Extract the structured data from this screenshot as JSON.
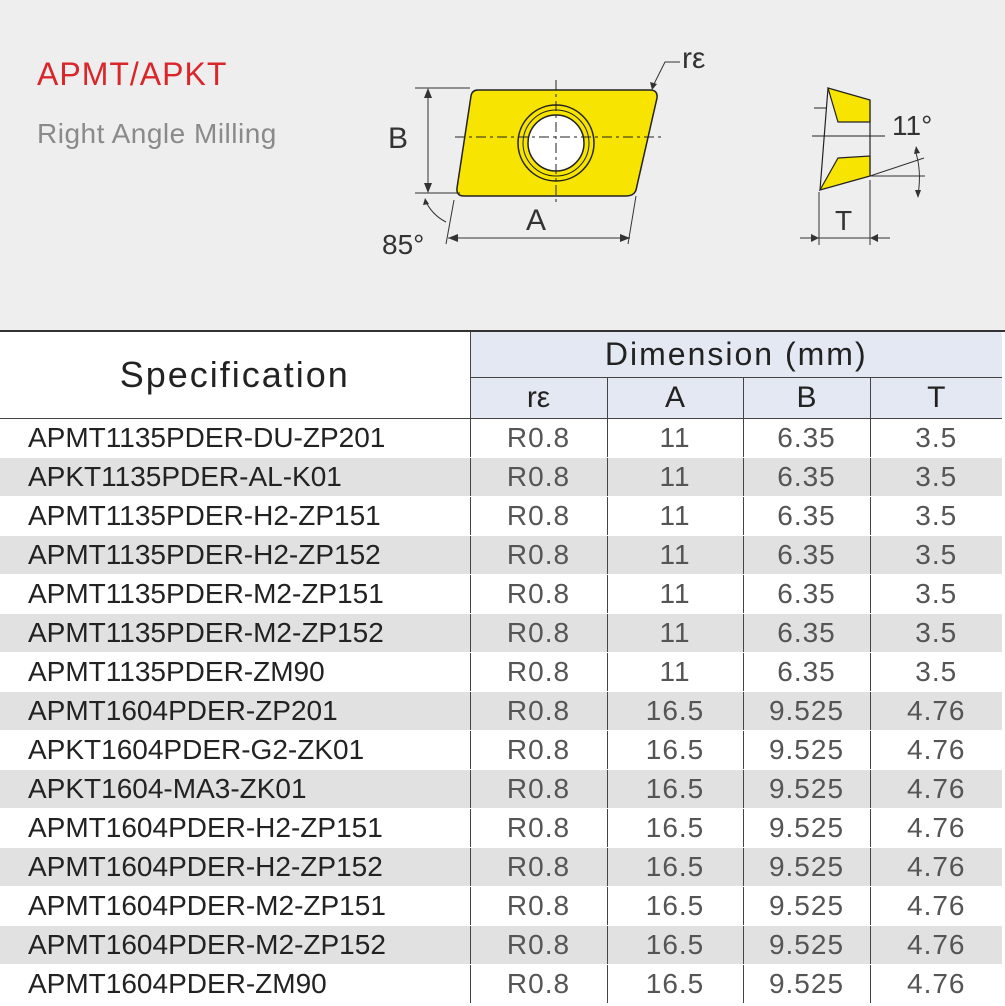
{
  "header": {
    "title": "APMT/APKT",
    "subtitle": "Right Angle Milling"
  },
  "diagram": {
    "label_re": "rε",
    "label_b": "B",
    "label_a": "A",
    "label_angle_85": "85°",
    "label_angle_11": "11°",
    "label_t": "T",
    "insert_color": "#f7e400"
  },
  "table": {
    "spec_header": "Specification",
    "dimension_header": "Dimension  (mm)",
    "columns": [
      "rε",
      "A",
      "B",
      "T"
    ],
    "rows": [
      {
        "spec": "APMT1135PDER-DU-ZP201",
        "re": "R0.8",
        "a": "11",
        "b": "6.35",
        "t": "3.5"
      },
      {
        "spec": "APKT1135PDER-AL-K01",
        "re": "R0.8",
        "a": "11",
        "b": "6.35",
        "t": "3.5"
      },
      {
        "spec": "APMT1135PDER-H2-ZP151",
        "re": "R0.8",
        "a": "11",
        "b": "6.35",
        "t": "3.5"
      },
      {
        "spec": "APMT1135PDER-H2-ZP152",
        "re": "R0.8",
        "a": "11",
        "b": "6.35",
        "t": "3.5"
      },
      {
        "spec": "APMT1135PDER-M2-ZP151",
        "re": "R0.8",
        "a": "11",
        "b": "6.35",
        "t": "3.5"
      },
      {
        "spec": "APMT1135PDER-M2-ZP152",
        "re": "R0.8",
        "a": "11",
        "b": "6.35",
        "t": "3.5"
      },
      {
        "spec": "APMT1135PDER-ZM90",
        "re": "R0.8",
        "a": "11",
        "b": "6.35",
        "t": "3.5"
      },
      {
        "spec": "APMT1604PDER-ZP201",
        "re": "R0.8",
        "a": "16.5",
        "b": "9.525",
        "t": "4.76"
      },
      {
        "spec": "APKT1604PDER-G2-ZK01",
        "re": "R0.8",
        "a": "16.5",
        "b": "9.525",
        "t": "4.76"
      },
      {
        "spec": "APKT1604-MA3-ZK01",
        "re": "R0.8",
        "a": "16.5",
        "b": "9.525",
        "t": "4.76"
      },
      {
        "spec": "APMT1604PDER-H2-ZP151",
        "re": "R0.8",
        "a": "16.5",
        "b": "9.525",
        "t": "4.76"
      },
      {
        "spec": "APMT1604PDER-H2-ZP152",
        "re": "R0.8",
        "a": "16.5",
        "b": "9.525",
        "t": "4.76"
      },
      {
        "spec": "APMT1604PDER-M2-ZP151",
        "re": "R0.8",
        "a": "16.5",
        "b": "9.525",
        "t": "4.76"
      },
      {
        "spec": "APMT1604PDER-M2-ZP152",
        "re": "R0.8",
        "a": "16.5",
        "b": "9.525",
        "t": "4.76"
      },
      {
        "spec": "APMT1604PDER-ZM90",
        "re": "R0.8",
        "a": "16.5",
        "b": "9.525",
        "t": "4.76"
      }
    ]
  }
}
